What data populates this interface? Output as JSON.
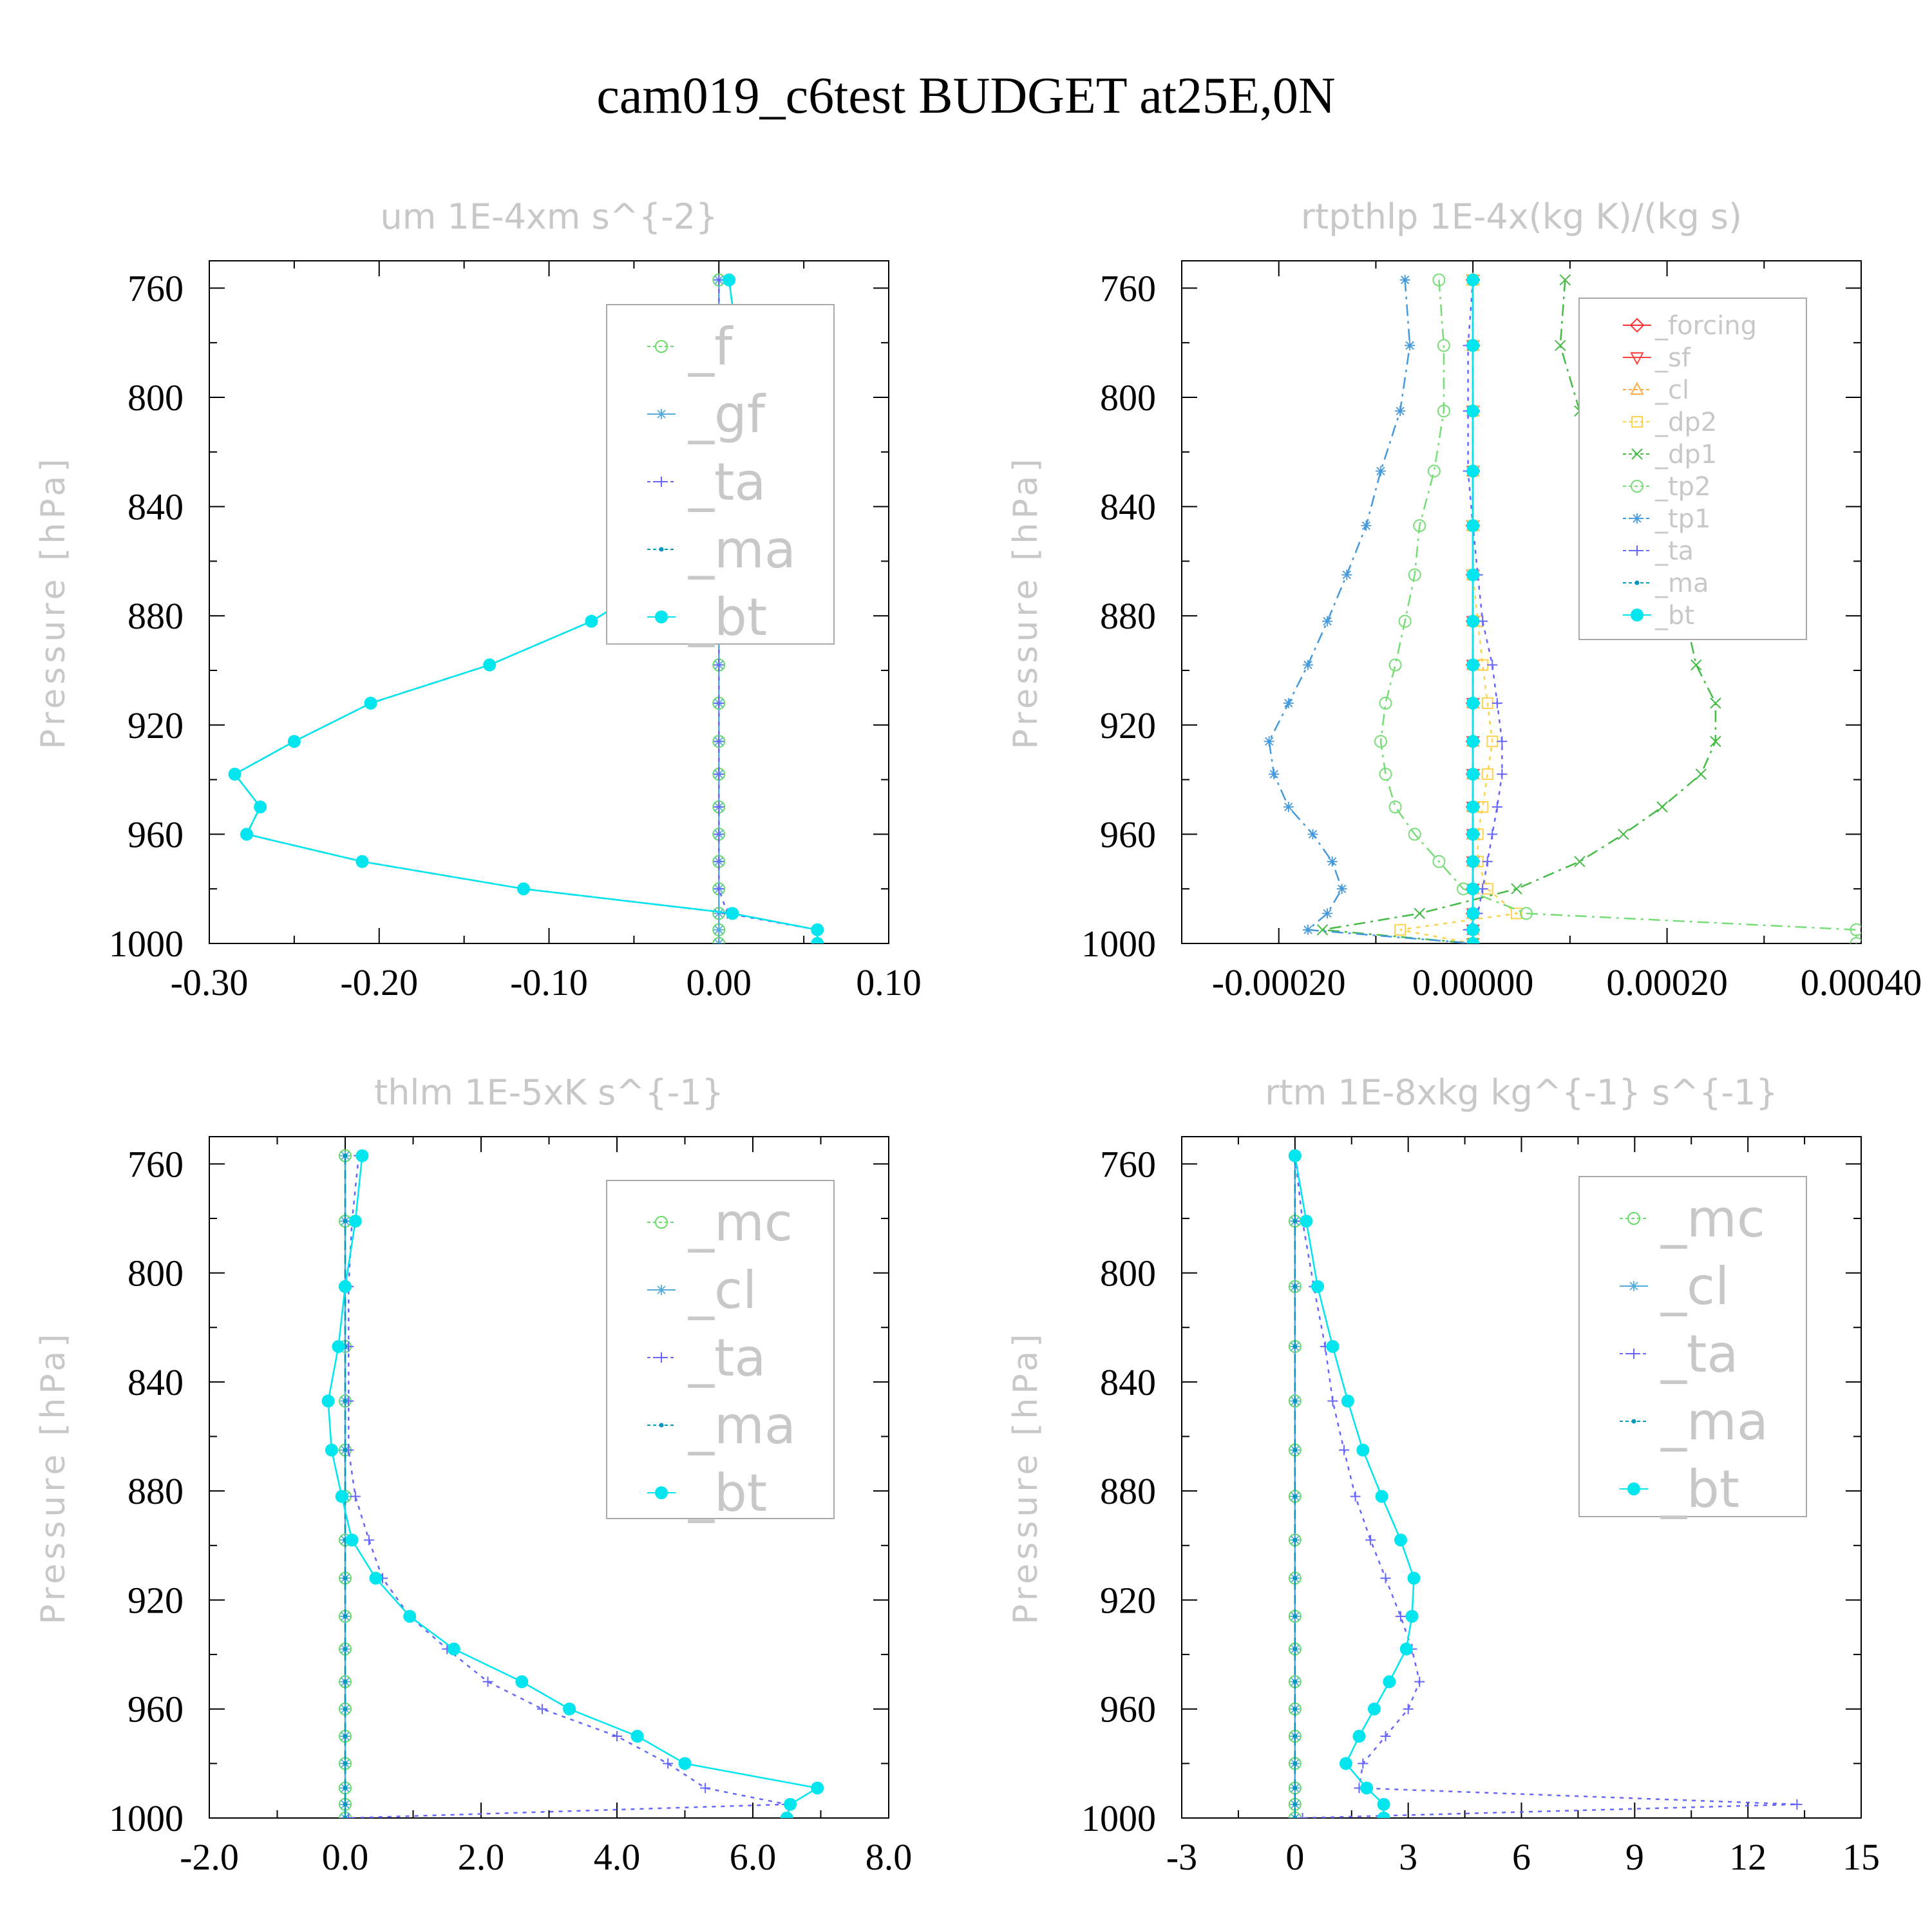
{
  "chart_data": {
    "title": "cam019_c6test  BUDGET at25E,0N",
    "panels": [
      {
        "type": "line",
        "title": "um  1E-4xm s^{-2}",
        "ylabel": "Pressure [hPa]",
        "ylim": [
          1000,
          750
        ],
        "yticks": [
          760,
          800,
          840,
          880,
          920,
          960,
          1000
        ],
        "xlim": [
          -0.3,
          0.1
        ],
        "xticks": [
          "-0.30",
          "-0.20",
          "-0.10",
          "0.00",
          "0.10"
        ],
        "legend_size": "large",
        "y": [
          757,
          781,
          805,
          827,
          847,
          865,
          882,
          898,
          912,
          926,
          938,
          950,
          960,
          970,
          980,
          989,
          995,
          1000
        ],
        "series": [
          {
            "name": "_f",
            "color": "#66dd66",
            "marker": "circle",
            "dash": "6,8",
            "values": [
              0,
              0,
              0,
              0,
              0,
              0,
              0,
              0,
              0,
              0,
              0,
              0,
              0,
              0,
              0,
              0,
              0,
              0
            ]
          },
          {
            "name": "_gf",
            "color": "#55aadd",
            "marker": "asterisk",
            "dash": "",
            "values": [
              0,
              0,
              0,
              0,
              0,
              0,
              0,
              0,
              0,
              0,
              0,
              0,
              0,
              0,
              0,
              0,
              0,
              0
            ]
          },
          {
            "name": "_ta",
            "color": "#6666ff",
            "marker": "plus",
            "dash": "6,8",
            "values": [
              0,
              0,
              0,
              0,
              0,
              0,
              0,
              0,
              0,
              0,
              0,
              0,
              0,
              0,
              0,
              0.005,
              0.058,
              0.058
            ]
          },
          {
            "name": "_ma",
            "color": "#0099bb",
            "marker": "dot",
            "dash": "14,8",
            "values": [
              0.006,
              0.011,
              0.017,
              0.017,
              0.002,
              -0.03,
              -0.075,
              -0.135,
              -0.205,
              -0.25,
              -0.285,
              -0.27,
              -0.278,
              -0.21,
              -0.115,
              0.008,
              0.058,
              0.058
            ]
          },
          {
            "name": "_bt",
            "color": "#00e5ee",
            "marker": "filled",
            "dash": "",
            "values": [
              0.006,
              0.011,
              0.017,
              0.017,
              0.002,
              -0.03,
              -0.075,
              -0.135,
              -0.205,
              -0.25,
              -0.285,
              -0.27,
              -0.278,
              -0.21,
              -0.115,
              0.008,
              0.058,
              0.058
            ]
          }
        ]
      },
      {
        "type": "line",
        "title": "rtpthlp  1E-4x(kg K)/(kg s)",
        "ylabel": "Pressure [hPa]",
        "ylim": [
          1000,
          750
        ],
        "yticks": [
          760,
          800,
          840,
          880,
          920,
          960,
          1000
        ],
        "xlim": [
          -0.0003,
          0.0004
        ],
        "xticks": [
          "-0.00020",
          "0.00000",
          "0.00020",
          "0.00040"
        ],
        "legend_size": "small",
        "y": [
          757,
          781,
          805,
          827,
          847,
          865,
          882,
          898,
          912,
          926,
          938,
          950,
          960,
          970,
          980,
          989,
          995,
          1000
        ],
        "series": [
          {
            "name": "_forcing",
            "color": "#ff3333",
            "marker": "diamond",
            "dash": "",
            "values": [
              0,
              0,
              0,
              0,
              0,
              0,
              0,
              0,
              0,
              0,
              0,
              0,
              0,
              0,
              0,
              0,
              0,
              0
            ]
          },
          {
            "name": "_sf",
            "color": "#ff4444",
            "marker": "tri-down",
            "dash": "",
            "values": [
              0,
              0,
              0,
              0,
              0,
              0,
              0,
              0,
              0,
              0,
              0,
              0,
              0,
              0,
              0,
              0,
              0,
              0
            ]
          },
          {
            "name": "_cl",
            "color": "#ffaa44",
            "marker": "tri-up",
            "dash": "6,8",
            "values": [
              0,
              0,
              0,
              0,
              0,
              0,
              0,
              0,
              0,
              0,
              0,
              0,
              0,
              0,
              0,
              0,
              0,
              0
            ]
          },
          {
            "name": "_dp2",
            "color": "#ffd24d",
            "marker": "square",
            "dash": "6,8",
            "values": [
              0,
              0,
              0,
              0,
              0,
              0,
              5e-06,
              1e-05,
              1.5e-05,
              2e-05,
              1.5e-05,
              1e-05,
              5e-06,
              5e-06,
              1.5e-05,
              4.5e-05,
              -7.5e-05,
              0
            ]
          },
          {
            "name": "_dp1",
            "color": "#44bb44",
            "marker": "cross",
            "dash": "18,8,4,8",
            "values": [
              9.5e-05,
              9e-05,
              0.00011,
              0.00014,
              0.00017,
              0.0002,
              0.00022,
              0.00023,
              0.00025,
              0.00025,
              0.000235,
              0.000195,
              0.000155,
              0.00011,
              4.5e-05,
              -5.5e-05,
              -0.000155,
              0
            ]
          },
          {
            "name": "_tp2",
            "color": "#77dd77",
            "marker": "circle",
            "dash": "18,8,4,8",
            "values": [
              -3.5e-05,
              -3e-05,
              -3e-05,
              -4e-05,
              -5.5e-05,
              -6e-05,
              -7e-05,
              -8e-05,
              -9e-05,
              -9.5e-05,
              -9e-05,
              -8e-05,
              -6e-05,
              -3.5e-05,
              -1e-05,
              5.5e-05,
              0.000395,
              0.000395
            ]
          },
          {
            "name": "_tp1",
            "color": "#4499dd",
            "marker": "asterisk",
            "dash": "18,8,4,8",
            "values": [
              -7e-05,
              -6.5e-05,
              -7.5e-05,
              -9.5e-05,
              -0.00011,
              -0.00013,
              -0.00015,
              -0.00017,
              -0.00019,
              -0.00021,
              -0.000205,
              -0.00019,
              -0.000165,
              -0.000145,
              -0.000135,
              -0.00015,
              -0.00017,
              0
            ]
          },
          {
            "name": "_ta",
            "color": "#6666ff",
            "marker": "plus",
            "dash": "6,8",
            "values": [
              0,
              -5e-06,
              -5e-06,
              -5e-06,
              0,
              5e-06,
              1e-05,
              2e-05,
              2.5e-05,
              3e-05,
              3e-05,
              2.5e-05,
              2e-05,
              1.5e-05,
              1e-05,
              5e-06,
              -5e-06,
              0
            ]
          },
          {
            "name": "_ma",
            "color": "#0099bb",
            "marker": "dot",
            "dash": "14,8",
            "values": [
              0,
              0,
              0,
              0,
              0,
              0,
              0,
              0,
              0,
              0,
              0,
              0,
              0,
              0,
              0,
              0,
              0,
              0
            ]
          },
          {
            "name": "_bt",
            "color": "#00e5ee",
            "marker": "filled",
            "dash": "",
            "values": [
              0,
              0,
              0,
              0,
              0,
              0,
              0,
              0,
              0,
              0,
              0,
              0,
              0,
              0,
              0,
              0,
              0,
              0
            ]
          }
        ]
      },
      {
        "type": "line",
        "title": "thlm  1E-5xK s^{-1}",
        "ylabel": "Pressure [hPa]",
        "ylim": [
          1000,
          750
        ],
        "yticks": [
          760,
          800,
          840,
          880,
          920,
          960,
          1000
        ],
        "xlim": [
          -2,
          8
        ],
        "xticks": [
          "-2.0",
          "0.0",
          "2.0",
          "4.0",
          "6.0",
          "8.0"
        ],
        "legend_size": "large",
        "y": [
          757,
          781,
          805,
          827,
          847,
          865,
          882,
          898,
          912,
          926,
          938,
          950,
          960,
          970,
          980,
          989,
          995,
          1000
        ],
        "series": [
          {
            "name": "_mc",
            "color": "#66dd66",
            "marker": "circle",
            "dash": "6,8",
            "values": [
              0,
              0,
              0,
              0,
              0,
              0,
              0,
              0,
              0,
              0,
              0,
              0,
              0,
              0,
              0,
              0,
              0,
              0
            ]
          },
          {
            "name": "_cl",
            "color": "#55aadd",
            "marker": "asterisk",
            "dash": "",
            "values": [
              0,
              0,
              0,
              0,
              0,
              0,
              0,
              0,
              0,
              0,
              0,
              0,
              0,
              0,
              0,
              0,
              0,
              0
            ]
          },
          {
            "name": "_ta",
            "color": "#6666ff",
            "marker": "plus",
            "dash": "6,8",
            "values": [
              0.2,
              0.1,
              0.05,
              0.05,
              0.05,
              0.05,
              0.15,
              0.35,
              0.55,
              0.95,
              1.5,
              2.1,
              2.9,
              4.0,
              4.75,
              5.3,
              6.5,
              0.05
            ]
          },
          {
            "name": "_ma",
            "color": "#0099bb",
            "marker": "dot",
            "dash": "14,8",
            "values": [
              0,
              0,
              0,
              0,
              0,
              0,
              0,
              0,
              0,
              0,
              0,
              0,
              0,
              0,
              0,
              0,
              0,
              0
            ]
          },
          {
            "name": "_bt",
            "color": "#00e5ee",
            "marker": "filled",
            "dash": "",
            "values": [
              0.25,
              0.15,
              0.0,
              -0.1,
              -0.25,
              -0.2,
              -0.05,
              0.1,
              0.45,
              0.95,
              1.6,
              2.6,
              3.3,
              4.3,
              5.0,
              6.95,
              6.55,
              6.5
            ]
          }
        ]
      },
      {
        "type": "line",
        "title": "rtm  1E-8xkg kg^{-1} s^{-1}",
        "ylabel": "Pressure [hPa]",
        "ylim": [
          1000,
          750
        ],
        "yticks": [
          760,
          800,
          840,
          880,
          920,
          960,
          1000
        ],
        "xlim": [
          -3,
          15
        ],
        "xticks": [
          "-3",
          "0",
          "3",
          "6",
          "9",
          "12",
          "15"
        ],
        "legend_size": "large",
        "y": [
          757,
          781,
          805,
          827,
          847,
          865,
          882,
          898,
          912,
          926,
          938,
          950,
          960,
          970,
          980,
          989,
          995,
          1000
        ],
        "series": [
          {
            "name": "_mc",
            "color": "#66dd66",
            "marker": "circle",
            "dash": "6,8",
            "values": [
              0,
              0,
              0,
              0,
              0,
              0,
              0,
              0,
              0,
              0,
              0,
              0,
              0,
              0,
              0,
              0,
              0,
              0
            ]
          },
          {
            "name": "_cl",
            "color": "#55aadd",
            "marker": "asterisk",
            "dash": "",
            "values": [
              0,
              0,
              0,
              0,
              0,
              0,
              0,
              0,
              0,
              0,
              0,
              0,
              0,
              0,
              0,
              0,
              0,
              0
            ]
          },
          {
            "name": "_ta",
            "color": "#6666ff",
            "marker": "plus",
            "dash": "6,8",
            "values": [
              0.0,
              0.2,
              0.5,
              0.8,
              1.0,
              1.3,
              1.6,
              2.0,
              2.4,
              2.8,
              3.1,
              3.3,
              3.0,
              2.4,
              1.8,
              1.7,
              13.3,
              0.2
            ]
          },
          {
            "name": "_ma",
            "color": "#0099bb",
            "marker": "dot",
            "dash": "14,8",
            "values": [
              0,
              0,
              0,
              0,
              0,
              0,
              0,
              0,
              0,
              0,
              0,
              0,
              0,
              0,
              0,
              0,
              0,
              0
            ]
          },
          {
            "name": "_bt",
            "color": "#00e5ee",
            "marker": "filled",
            "dash": "",
            "values": [
              0.0,
              0.3,
              0.6,
              1.0,
              1.4,
              1.8,
              2.3,
              2.8,
              3.15,
              3.1,
              2.95,
              2.5,
              2.1,
              1.7,
              1.35,
              1.9,
              2.35,
              2.35
            ]
          }
        ]
      }
    ]
  }
}
